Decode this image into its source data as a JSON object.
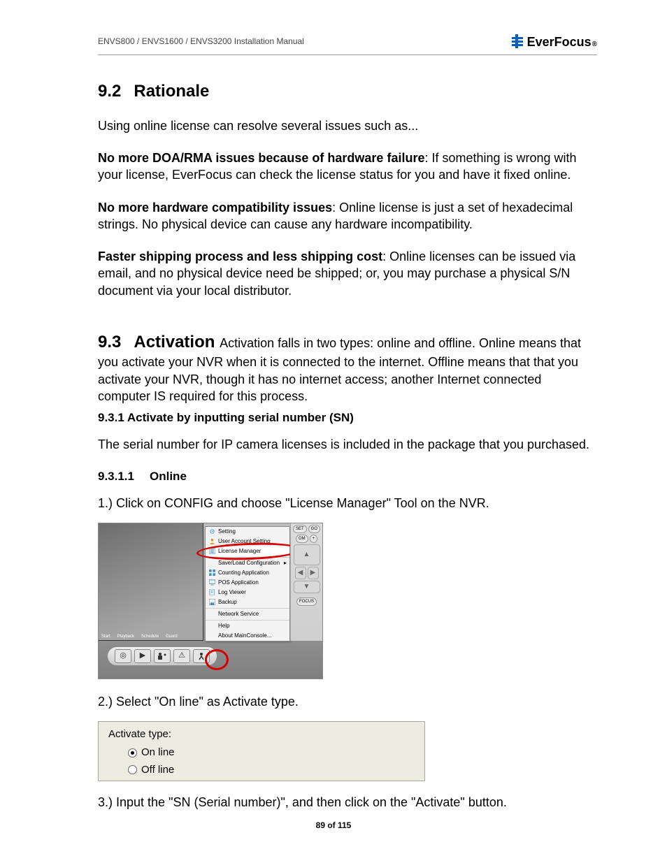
{
  "header": {
    "doc_title": "ENVS800 / ENVS1600 / ENVS3200 Installation Manual",
    "brand_name": "EverFocus",
    "brand_mark": "®",
    "brand_icon_color": "#0060c0"
  },
  "section_9_2": {
    "number": "9.2",
    "title": "Rationale",
    "intro": "Using online license can resolve several issues such as...",
    "p1_lead": "No more DOA/RMA issues because of hardware failure",
    "p1_rest": ": If something is wrong with your license, EverFocus can check the license status for you and have it fixed online.",
    "p2_lead": "No more hardware compatibility issues",
    "p2_rest": ": Online license is just a set of hexadecimal strings. No physical device can cause any hardware incompatibility.",
    "p3_lead": "Faster shipping process and less shipping cost",
    "p3_rest": ": Online licenses can be issued via email, and no physical device need be shipped; or, you may purchase a physical S/N document via your local distributor."
  },
  "section_9_3": {
    "number": "9.3",
    "title": "Activation",
    "lead_rest": " Activation falls in two types: online and offline. Online means that you activate your NVR when it is connected to the internet. Offline means that that you activate your NVR, though it has no internet access; another Internet connected computer IS required for this process.",
    "sub_9_3_1": "9.3.1 Activate by inputting serial number (SN)",
    "sub_9_3_1_text": "The serial number for IP camera licenses is included in the package that you purchased.",
    "sub_9_3_1_1_num": "9.3.1.1",
    "sub_9_3_1_1_title": "Online",
    "step1": "1.) Click on CONFIG and choose \"License Manager\" Tool on the NVR.",
    "step2": "2.) Select \"On line\" as Activate type.",
    "step3": "3.) Input the \"SN (Serial number)\", and then click on the \"Activate\" button."
  },
  "nvr_menu": {
    "items": [
      {
        "label": "Setting",
        "icon": "gear",
        "icon_color": "#5a8fd6"
      },
      {
        "label": "User Account Setting",
        "icon": "user",
        "icon_color": "#c99a3a"
      },
      {
        "label": "License Manager",
        "icon": "card-list",
        "icon_color": "#3b8fd0",
        "highlight": true
      },
      {
        "label": "Save/Load Configuration",
        "icon": "",
        "icon_color": "",
        "arrow": true
      },
      {
        "label": "Counting Application",
        "icon": "grid",
        "icon_color": "#3b8fd0"
      },
      {
        "label": "POS Application",
        "icon": "monitor",
        "icon_color": "#3b8fd0"
      },
      {
        "label": "Log Viewer",
        "icon": "doc",
        "icon_color": "#6aa8e0"
      },
      {
        "label": "Backup",
        "icon": "save",
        "icon_color": "#3b8fd0"
      },
      {
        "label": "Network Service",
        "icon": "",
        "icon_color": ""
      },
      {
        "label": "Help",
        "icon": "",
        "icon_color": ""
      },
      {
        "label": "About MainConsole...",
        "icon": "",
        "icon_color": ""
      }
    ],
    "tabs": [
      "Start",
      "Playback",
      "Schedule",
      "Guard"
    ],
    "side": {
      "set": "SET",
      "go": "GO",
      "om": "OM",
      "plus": "+",
      "focus": "FOCUS"
    },
    "highlight_color": "#d40000",
    "toolbar_icons": [
      "target",
      "play-slide",
      "people-gear",
      "warning",
      "person-run"
    ]
  },
  "activate_panel": {
    "label": "Activate type:",
    "options": [
      {
        "label": "On line",
        "selected": true
      },
      {
        "label": "Off line",
        "selected": false
      }
    ],
    "bg": "#ecece0",
    "border": "#a7a79b"
  },
  "footer": {
    "page": "89 of 115"
  }
}
